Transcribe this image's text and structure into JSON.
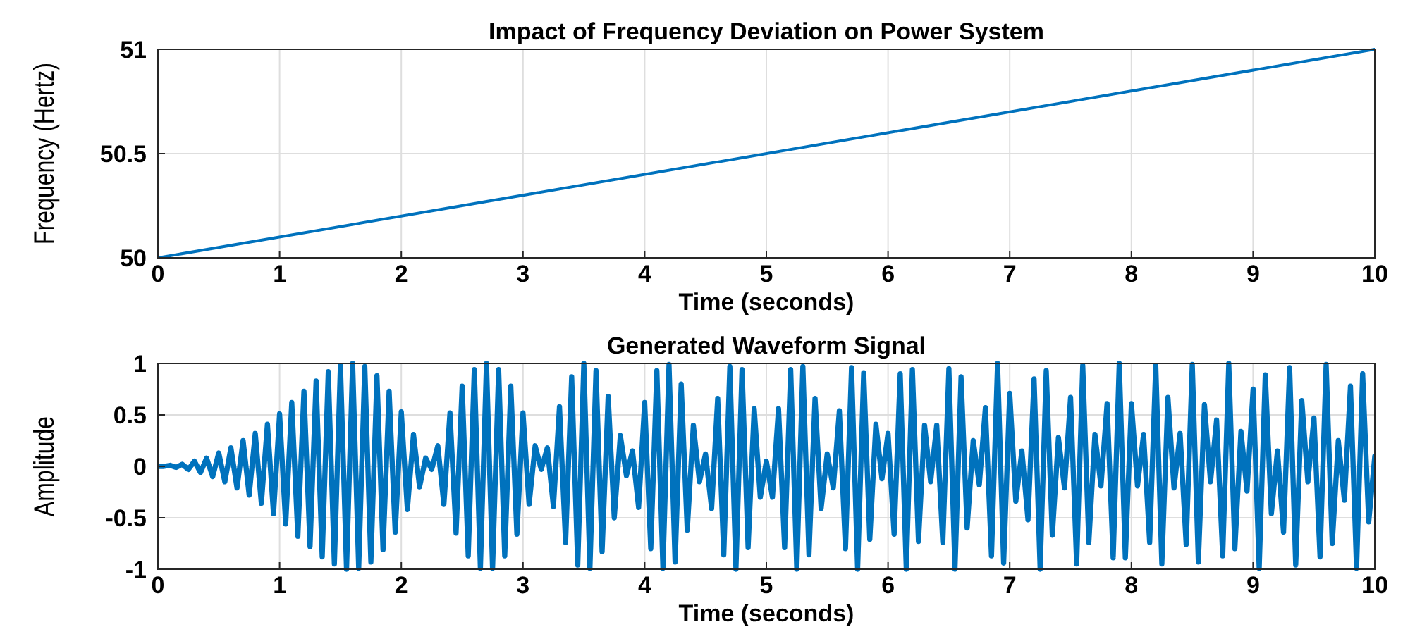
{
  "chart_data": [
    {
      "type": "line",
      "title": "Impact of Frequency Deviation on Power System",
      "xlabel": "Time (seconds)",
      "ylabel": "Frequency (Hertz)",
      "xlim": [
        0,
        10
      ],
      "ylim": [
        50,
        51
      ],
      "xticks": [
        0,
        1,
        2,
        3,
        4,
        5,
        6,
        7,
        8,
        9,
        10
      ],
      "yticks": [
        50,
        50.5,
        51
      ],
      "grid": true,
      "x": [
        0,
        10
      ],
      "series": [
        {
          "color": "#0072bd",
          "values": [
            50,
            51
          ]
        }
      ]
    },
    {
      "type": "line",
      "title": "Generated Waveform Signal",
      "xlabel": "Time (seconds)",
      "ylabel": "Amplitude",
      "xlim": [
        0,
        10
      ],
      "ylim": [
        -1,
        1
      ],
      "xticks": [
        0,
        1,
        2,
        3,
        4,
        5,
        6,
        7,
        8,
        9,
        10
      ],
      "yticks": [
        -1,
        -0.5,
        0,
        0.5,
        1
      ],
      "grid": true,
      "x": [
        0,
        0.05,
        0.1,
        0.15,
        0.2,
        0.25,
        0.3,
        0.35,
        0.4,
        0.45,
        0.5,
        0.55,
        0.6,
        0.65,
        0.7,
        0.75,
        0.8,
        0.85,
        0.9,
        0.95,
        1,
        1.05,
        1.1,
        1.15,
        1.2,
        1.25,
        1.3,
        1.35,
        1.4,
        1.45,
        1.5,
        1.55,
        1.6,
        1.65,
        1.7,
        1.75,
        1.8,
        1.85,
        1.9,
        1.95,
        2,
        2.05,
        2.1,
        2.15,
        2.2,
        2.25,
        2.3,
        2.35,
        2.4,
        2.45,
        2.5,
        2.55,
        2.6,
        2.65,
        2.7,
        2.75,
        2.8,
        2.85,
        2.9,
        2.95,
        3,
        3.05,
        3.1,
        3.15,
        3.2,
        3.25,
        3.3,
        3.35,
        3.4,
        3.45,
        3.5,
        3.55,
        3.6,
        3.65,
        3.7,
        3.75,
        3.8,
        3.85,
        3.9,
        3.95,
        4,
        4.05,
        4.1,
        4.15,
        4.2,
        4.25,
        4.3,
        4.35,
        4.4,
        4.45,
        4.5,
        4.55,
        4.6,
        4.65,
        4.7,
        4.75,
        4.8,
        4.85,
        4.9,
        4.95,
        5,
        5.05,
        5.1,
        5.15,
        5.2,
        5.25,
        5.3,
        5.35,
        5.4,
        5.45,
        5.5,
        5.55,
        5.6,
        5.65,
        5.7,
        5.75,
        5.8,
        5.85,
        5.9,
        5.95,
        6,
        6.05,
        6.1,
        6.15,
        6.2,
        6.25,
        6.3,
        6.35,
        6.4,
        6.45,
        6.5,
        6.55,
        6.6,
        6.65,
        6.7,
        6.75,
        6.8,
        6.85,
        6.9,
        6.95,
        7,
        7.05,
        7.1,
        7.15,
        7.2,
        7.25,
        7.3,
        7.35,
        7.4,
        7.45,
        7.5,
        7.55,
        7.6,
        7.65,
        7.7,
        7.75,
        7.8,
        7.85,
        7.9,
        7.95,
        8,
        8.05,
        8.1,
        8.15,
        8.2,
        8.25,
        8.3,
        8.35,
        8.4,
        8.45,
        8.5,
        8.55,
        8.6,
        8.65,
        8.7,
        8.75,
        8.8,
        8.85,
        8.9,
        8.95,
        9,
        9.05,
        9.1,
        9.15,
        9.2,
        9.25,
        9.3,
        9.35,
        9.4,
        9.45,
        9.5,
        9.55,
        9.6,
        9.65,
        9.7,
        9.75,
        9.8,
        9.85,
        9.9,
        9.95,
        10
      ],
      "series": [
        {
          "color": "#0072bd",
          "values": [
            0,
            0,
            0.01,
            -0.01,
            0.02,
            -0.03,
            0.05,
            -0.06,
            0.08,
            -0.1,
            0.13,
            -0.15,
            0.18,
            -0.21,
            0.25,
            -0.28,
            0.32,
            -0.36,
            0.41,
            -0.46,
            0.51,
            -0.56,
            0.62,
            -0.68,
            0.73,
            -0.78,
            0.83,
            -0.88,
            0.92,
            -0.95,
            0.98,
            -1,
            1,
            -0.99,
            0.97,
            -0.93,
            0.88,
            -0.81,
            0.73,
            -0.64,
            0.53,
            -0.42,
            0.31,
            -0.2,
            0.08,
            -0.03,
            0.2,
            -0.37,
            0.52,
            -0.65,
            0.78,
            -0.87,
            0.94,
            -0.99,
            1,
            -0.99,
            0.94,
            -0.87,
            0.78,
            -0.66,
            0.52,
            -0.37,
            0.2,
            -0.03,
            0.18,
            -0.39,
            0.58,
            -0.74,
            0.87,
            -0.96,
            1,
            -0.99,
            0.93,
            -0.83,
            0.68,
            -0.5,
            0.3,
            -0.09,
            0.15,
            -0.4,
            0.62,
            -0.8,
            0.93,
            -0.99,
            0.99,
            -0.93,
            0.8,
            -0.62,
            0.4,
            -0.15,
            0.12,
            -0.41,
            0.66,
            -0.86,
            0.97,
            -1,
            0.94,
            -0.79,
            0.56,
            -0.3,
            0.05,
            -0.3,
            0.56,
            -0.79,
            0.94,
            -1,
            0.97,
            -0.86,
            0.66,
            -0.41,
            0.12,
            -0.21,
            0.54,
            -0.8,
            0.96,
            -1,
            0.91,
            -0.71,
            0.41,
            -0.12,
            0.32,
            -0.66,
            0.9,
            -1,
            0.94,
            -0.73,
            0.4,
            -0.15,
            0.4,
            -0.74,
            0.95,
            -1,
            0.87,
            -0.6,
            0.25,
            -0.18,
            0.57,
            -0.87,
            1,
            -0.94,
            0.71,
            -0.34,
            0.15,
            -0.52,
            0.85,
            -1,
            0.93,
            -0.67,
            0.28,
            -0.21,
            0.67,
            -0.95,
            0.98,
            -0.74,
            0.31,
            -0.19,
            0.61,
            -0.89,
            1,
            -0.89,
            0.61,
            -0.19,
            0.31,
            -0.74,
            0.98,
            -0.95,
            0.67,
            -0.21,
            0.32,
            -0.76,
            0.99,
            -0.93,
            0.6,
            -0.15,
            0.45,
            -0.87,
            1,
            -0.8,
            0.34,
            -0.24,
            0.75,
            -0.99,
            0.89,
            -0.46,
            0.15,
            -0.64,
            0.96,
            -0.96,
            0.64,
            -0.15,
            0.47,
            -0.88,
            0.99,
            -0.75,
            0.25,
            -0.33,
            0.78,
            -0.99,
            0.9,
            -0.54,
            0.1
          ]
        }
      ]
    }
  ]
}
